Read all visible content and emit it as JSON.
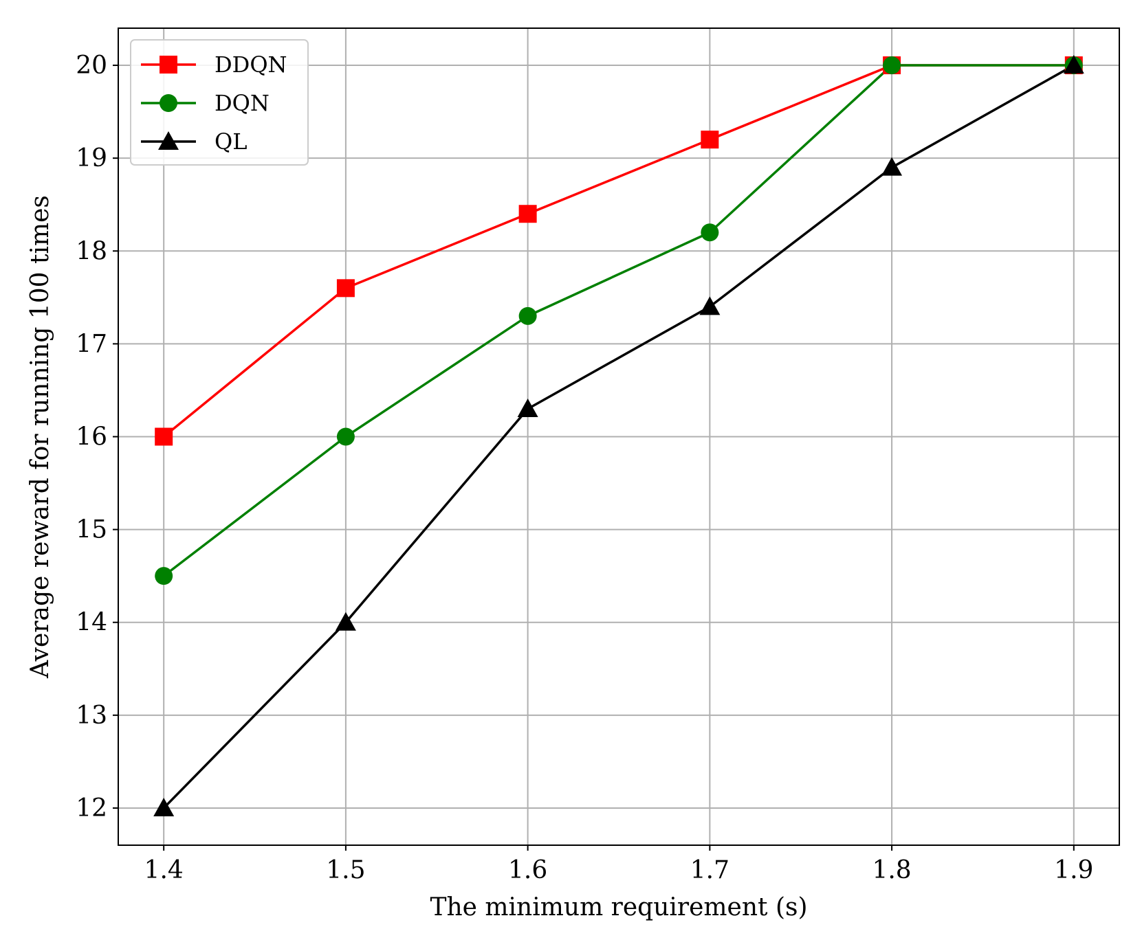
{
  "chart_data": {
    "type": "line",
    "x": [
      1.4,
      1.5,
      1.6,
      1.7,
      1.8,
      1.9
    ],
    "xticks": [
      "1.4",
      "1.5",
      "1.6",
      "1.7",
      "1.8",
      "1.9"
    ],
    "yticks": [
      "12",
      "13",
      "14",
      "15",
      "16",
      "17",
      "18",
      "19",
      "20"
    ],
    "xlim": [
      1.375,
      1.925
    ],
    "ylim": [
      11.6,
      20.4
    ],
    "xlabel": "The minimum requirement (s)",
    "ylabel": "Average reward for running 100 times",
    "grid": true,
    "legend_position": "top-left",
    "series": [
      {
        "name": "DDQN",
        "color": "#ff0000",
        "marker": "square",
        "values": [
          16.0,
          17.6,
          18.4,
          19.2,
          20.0,
          20.0
        ]
      },
      {
        "name": "DQN",
        "color": "#008000",
        "marker": "circle",
        "values": [
          14.5,
          16.0,
          17.3,
          18.2,
          20.0,
          20.0
        ]
      },
      {
        "name": "QL",
        "color": "#000000",
        "marker": "triangle",
        "values": [
          12.0,
          14.0,
          16.3,
          17.4,
          18.9,
          20.0
        ]
      }
    ]
  }
}
